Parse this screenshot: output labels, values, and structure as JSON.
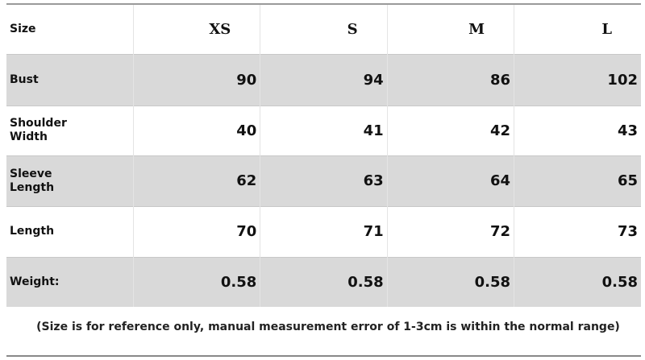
{
  "table": {
    "header": [
      "Size",
      "XS",
      "S",
      "M",
      "L"
    ],
    "rows": [
      [
        "Bust",
        "90",
        "94",
        "86",
        "102"
      ],
      [
        "Shoulder Width",
        "40",
        "41",
        "42",
        "43"
      ],
      [
        "Sleeve Length",
        "62",
        "63",
        "64",
        "65"
      ],
      [
        "Length",
        "70",
        "71",
        "72",
        "73"
      ],
      [
        "Weight:",
        "0.58",
        "0.58",
        "0.58",
        "0.58"
      ]
    ]
  },
  "note": "(Size is for reference only, manual measurement error of 1-3cm is within the normal range)"
}
